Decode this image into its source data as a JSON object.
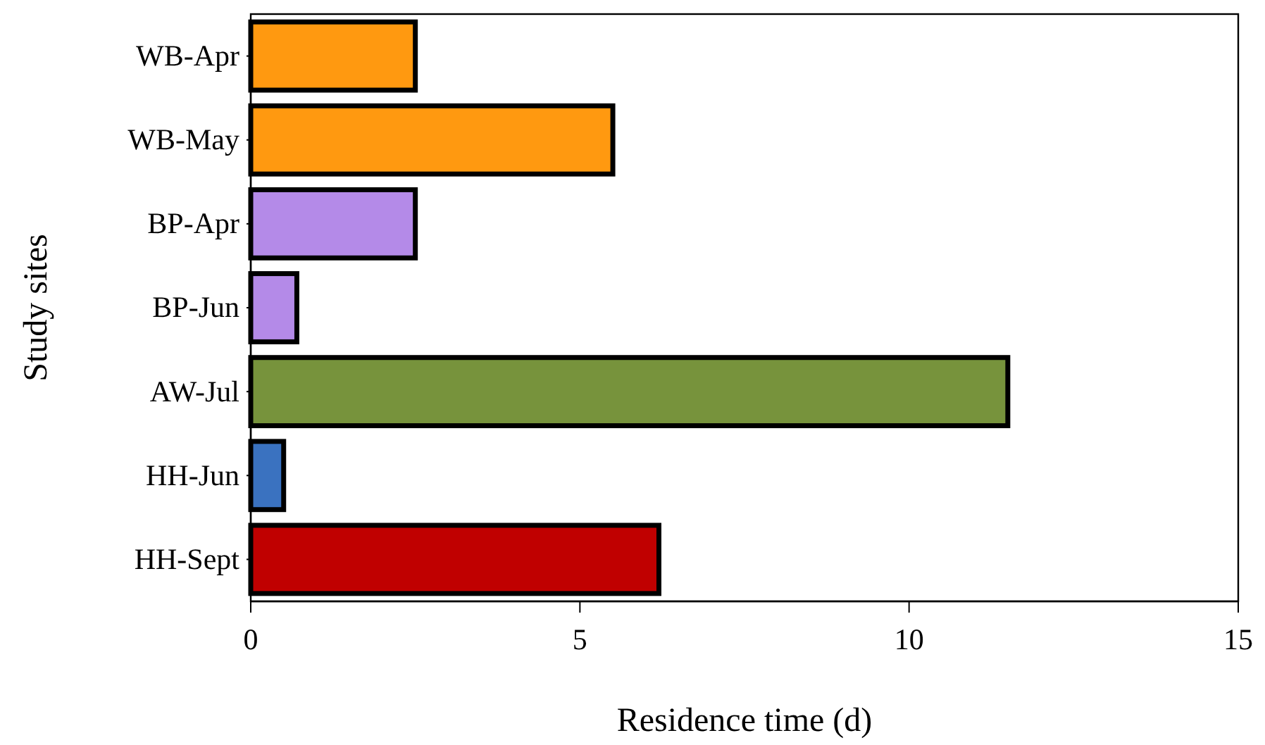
{
  "chart_data": {
    "type": "bar",
    "orientation": "horizontal",
    "xlabel": "Residence time (d)",
    "ylabel": "Study sites",
    "categories": [
      "WB-Apr",
      "WB-May",
      "BP-Apr",
      "BP-Jun",
      "AW-Jul",
      "HH-Jun",
      "HH-Sept"
    ],
    "values": [
      2.5,
      5.5,
      2.5,
      0.7,
      11.5,
      0.5,
      6.2
    ],
    "colors": [
      "#ff9910",
      "#ff9910",
      "#b48ae8",
      "#b48ae8",
      "#77933c",
      "#3a72c0",
      "#c00000"
    ],
    "xlim": [
      0,
      15
    ],
    "xticks": [
      0,
      5,
      10,
      15
    ],
    "grid": false,
    "legend": false
  }
}
